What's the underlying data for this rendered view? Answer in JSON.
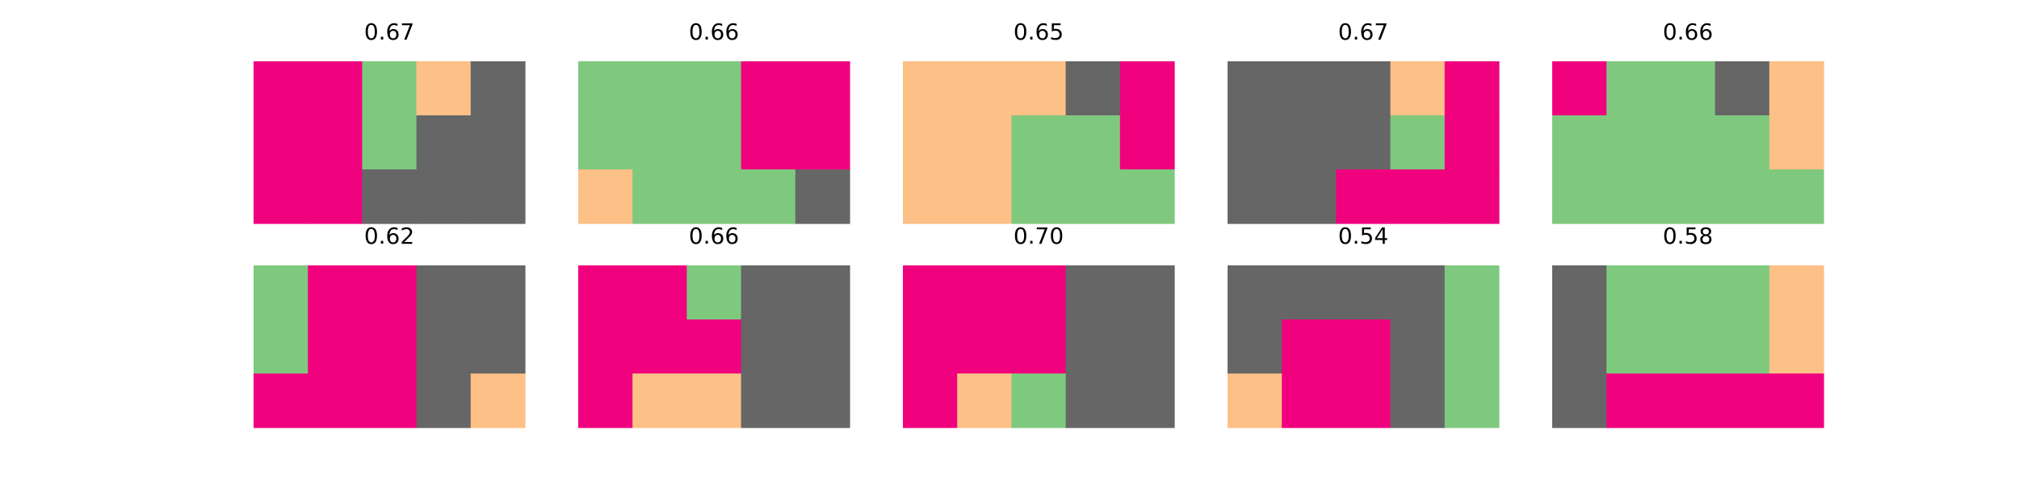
{
  "chart_data": {
    "type": "heatmap",
    "grid": {
      "rows": 3,
      "cols": 5
    },
    "colors": {
      "0": "#f0027f",
      "1": "#7fc97f",
      "2": "#fdc086",
      "3": "#666666"
    },
    "panels": [
      {
        "title": "0.67",
        "cells": [
          [
            0,
            0,
            1,
            2,
            3
          ],
          [
            0,
            0,
            1,
            3,
            3
          ],
          [
            0,
            0,
            3,
            3,
            3
          ]
        ]
      },
      {
        "title": "0.66",
        "cells": [
          [
            1,
            1,
            1,
            0,
            0
          ],
          [
            1,
            1,
            1,
            0,
            0
          ],
          [
            2,
            1,
            1,
            1,
            3
          ]
        ]
      },
      {
        "title": "0.65",
        "cells": [
          [
            2,
            2,
            2,
            3,
            0
          ],
          [
            2,
            2,
            1,
            1,
            0
          ],
          [
            2,
            2,
            1,
            1,
            1
          ]
        ]
      },
      {
        "title": "0.67",
        "cells": [
          [
            3,
            3,
            3,
            2,
            0
          ],
          [
            3,
            3,
            3,
            1,
            0
          ],
          [
            3,
            3,
            0,
            0,
            0
          ]
        ]
      },
      {
        "title": "0.66",
        "cells": [
          [
            0,
            1,
            1,
            3,
            2
          ],
          [
            1,
            1,
            1,
            1,
            2
          ],
          [
            1,
            1,
            1,
            1,
            1
          ]
        ]
      },
      {
        "title": "0.62",
        "cells": [
          [
            1,
            0,
            0,
            3,
            3
          ],
          [
            1,
            0,
            0,
            3,
            3
          ],
          [
            0,
            0,
            0,
            3,
            2
          ]
        ]
      },
      {
        "title": "0.66",
        "cells": [
          [
            0,
            0,
            1,
            3,
            3
          ],
          [
            0,
            0,
            0,
            3,
            3
          ],
          [
            0,
            2,
            2,
            3,
            3
          ]
        ]
      },
      {
        "title": "0.70",
        "cells": [
          [
            0,
            0,
            0,
            3,
            3
          ],
          [
            0,
            0,
            0,
            3,
            3
          ],
          [
            0,
            2,
            1,
            3,
            3
          ]
        ]
      },
      {
        "title": "0.54",
        "cells": [
          [
            3,
            3,
            3,
            3,
            1
          ],
          [
            3,
            0,
            0,
            3,
            1
          ],
          [
            2,
            0,
            0,
            3,
            1
          ]
        ]
      },
      {
        "title": "0.58",
        "cells": [
          [
            3,
            1,
            1,
            1,
            2
          ],
          [
            3,
            1,
            1,
            1,
            2
          ],
          [
            3,
            0,
            0,
            0,
            0
          ]
        ]
      }
    ]
  }
}
